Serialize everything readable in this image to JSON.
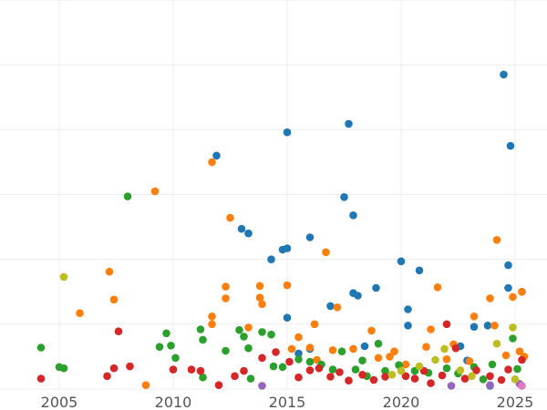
{
  "chart_data": {
    "type": "scatter",
    "title": "",
    "xlabel": "",
    "ylabel": "",
    "xlim": [
      2002.4,
      2026.4
    ],
    "ylim": [
      0,
      60
    ],
    "xticks": [
      {
        "value": 2005,
        "label": "2005"
      },
      {
        "value": 2010,
        "label": "2010"
      },
      {
        "value": 2015,
        "label": "2015"
      },
      {
        "value": 2020,
        "label": "2020"
      },
      {
        "value": 2025,
        "label": "2025"
      }
    ],
    "ygrid": [
      0,
      10,
      20,
      30,
      40,
      50,
      60
    ],
    "grid": true,
    "legend": "none",
    "series": [
      {
        "color": "#1f77b4",
        "points": [
          [
            2011.9,
            36.0
          ],
          [
            2014.8,
            21.5
          ],
          [
            2013.3,
            24.0
          ],
          [
            2013.0,
            24.7
          ],
          [
            2014.3,
            20.0
          ],
          [
            2015.0,
            39.6
          ],
          [
            2015.0,
            21.7
          ],
          [
            2015.0,
            11.0
          ],
          [
            2015.5,
            5.5
          ],
          [
            2016.0,
            23.4
          ],
          [
            2016.0,
            6.2
          ],
          [
            2016.9,
            12.8
          ],
          [
            2017.5,
            29.6
          ],
          [
            2017.7,
            40.9
          ],
          [
            2017.9,
            26.8
          ],
          [
            2017.9,
            14.8
          ],
          [
            2018.1,
            14.4
          ],
          [
            2018.4,
            6.6
          ],
          [
            2018.9,
            15.6
          ],
          [
            2020.0,
            19.7
          ],
          [
            2020.3,
            12.3
          ],
          [
            2020.3,
            9.8
          ],
          [
            2020.8,
            18.3
          ],
          [
            2022.6,
            6.6
          ],
          [
            2022.9,
            4.4
          ],
          [
            2023.2,
            9.6
          ],
          [
            2023.8,
            9.8
          ],
          [
            2024.5,
            48.5
          ],
          [
            2024.7,
            19.1
          ],
          [
            2024.7,
            15.6
          ],
          [
            2024.8,
            37.5
          ],
          [
            2025.3,
            15.0
          ],
          [
            2023.9,
            0.5
          ]
        ]
      },
      {
        "color": "#ff7f0e",
        "points": [
          [
            2008.8,
            0.6
          ],
          [
            2005.9,
            11.7
          ],
          [
            2007.2,
            18.1
          ],
          [
            2007.4,
            13.8
          ],
          [
            2009.2,
            30.5
          ],
          [
            2011.7,
            35.0
          ],
          [
            2011.7,
            10.0
          ],
          [
            2011.7,
            11.2
          ],
          [
            2012.3,
            15.8
          ],
          [
            2012.3,
            14.0
          ],
          [
            2012.5,
            26.4
          ],
          [
            2013.3,
            9.5
          ],
          [
            2013.8,
            15.9
          ],
          [
            2013.8,
            14.1
          ],
          [
            2013.9,
            13.1
          ],
          [
            2015.0,
            16.0
          ],
          [
            2015.2,
            6.2
          ],
          [
            2015.5,
            8.0
          ],
          [
            2016.0,
            6.4
          ],
          [
            2016.2,
            10.0
          ],
          [
            2016.3,
            4.5
          ],
          [
            2016.7,
            21.1
          ],
          [
            2017.0,
            6.0
          ],
          [
            2017.2,
            12.6
          ],
          [
            2017.9,
            6.2
          ],
          [
            2018.7,
            9.0
          ],
          [
            2019.0,
            4.8
          ],
          [
            2019.5,
            5.0
          ],
          [
            2019.7,
            5.8
          ],
          [
            2020.2,
            3.8
          ],
          [
            2021.1,
            6.5
          ],
          [
            2021.3,
            9.2
          ],
          [
            2021.6,
            15.7
          ],
          [
            2022.0,
            4.6
          ],
          [
            2022.3,
            6.9
          ],
          [
            2023.0,
            4.3
          ],
          [
            2023.2,
            11.2
          ],
          [
            2023.9,
            14.0
          ],
          [
            2024.1,
            9.8
          ],
          [
            2024.2,
            23.0
          ],
          [
            2024.6,
            5.2
          ],
          [
            2024.9,
            14.2
          ],
          [
            2025.2,
            5.8
          ],
          [
            2025.3,
            15.0
          ],
          [
            2025.4,
            5.0
          ]
        ]
      },
      {
        "color": "#2ca02c",
        "points": [
          [
            2004.2,
            6.4
          ],
          [
            2005.0,
            3.4
          ],
          [
            2005.2,
            3.2
          ],
          [
            2008.0,
            29.7
          ],
          [
            2009.4,
            6.5
          ],
          [
            2009.7,
            8.6
          ],
          [
            2009.9,
            6.7
          ],
          [
            2010.1,
            4.8
          ],
          [
            2011.2,
            9.2
          ],
          [
            2011.3,
            7.6
          ],
          [
            2011.3,
            1.8
          ],
          [
            2012.3,
            5.9
          ],
          [
            2012.9,
            9.1
          ],
          [
            2013.1,
            8.1
          ],
          [
            2013.3,
            6.3
          ],
          [
            2013.4,
            1.6
          ],
          [
            2013.9,
            8.8
          ],
          [
            2014.3,
            8.4
          ],
          [
            2014.4,
            3.5
          ],
          [
            2014.8,
            3.4
          ],
          [
            2015.5,
            4.6
          ],
          [
            2016.0,
            4.2
          ],
          [
            2016.5,
            3.8
          ],
          [
            2017.0,
            3.0
          ],
          [
            2017.4,
            5.8
          ],
          [
            2018.0,
            3.0
          ],
          [
            2018.3,
            4.4
          ],
          [
            2018.5,
            2.0
          ],
          [
            2019.0,
            7.0
          ],
          [
            2019.3,
            2.8
          ],
          [
            2019.9,
            3.7
          ],
          [
            2020.6,
            2.8
          ],
          [
            2021.2,
            2.5
          ],
          [
            2022.0,
            3.2
          ],
          [
            2022.5,
            2.4
          ],
          [
            2023.2,
            3.4
          ],
          [
            2023.6,
            1.5
          ],
          [
            2024.0,
            3.8
          ],
          [
            2024.9,
            7.8
          ],
          [
            2025.1,
            3.1
          ]
        ]
      },
      {
        "color": "#d62728",
        "points": [
          [
            2004.2,
            1.6
          ],
          [
            2007.1,
            2.0
          ],
          [
            2007.4,
            3.2
          ],
          [
            2007.6,
            8.9
          ],
          [
            2008.1,
            3.5
          ],
          [
            2010.0,
            3.0
          ],
          [
            2010.8,
            3.0
          ],
          [
            2011.2,
            2.8
          ],
          [
            2012.0,
            0.6
          ],
          [
            2012.7,
            2.0
          ],
          [
            2013.1,
            2.8
          ],
          [
            2013.9,
            4.8
          ],
          [
            2014.5,
            5.7
          ],
          [
            2015.1,
            4.2
          ],
          [
            2015.5,
            1.8
          ],
          [
            2016.0,
            2.9
          ],
          [
            2016.4,
            3.2
          ],
          [
            2016.9,
            1.9
          ],
          [
            2017.3,
            2.6
          ],
          [
            2017.7,
            1.3
          ],
          [
            2018.3,
            2.2
          ],
          [
            2018.8,
            1.4
          ],
          [
            2019.3,
            1.9
          ],
          [
            2020.2,
            2.0
          ],
          [
            2020.6,
            1.6
          ],
          [
            2021.0,
            2.8
          ],
          [
            2021.3,
            0.9
          ],
          [
            2021.8,
            2.1
          ],
          [
            2022.0,
            10.0
          ],
          [
            2022.4,
            6.3
          ],
          [
            2022.8,
            1.6
          ],
          [
            2023.3,
            2.9
          ],
          [
            2023.9,
            2.0
          ],
          [
            2024.4,
            1.4
          ],
          [
            2024.7,
            3.0
          ],
          [
            2025.3,
            4.5
          ]
        ]
      },
      {
        "color": "#9467bd",
        "points": [
          [
            2013.9,
            0.5
          ],
          [
            2022.2,
            0.5
          ],
          [
            2023.9,
            0.6
          ],
          [
            2025.2,
            0.8
          ]
        ]
      },
      {
        "color": "#bcbd22",
        "points": [
          [
            2005.2,
            17.3
          ],
          [
            2019.6,
            2.2
          ],
          [
            2020.0,
            2.8
          ],
          [
            2020.8,
            3.5
          ],
          [
            2021.5,
            4.5
          ],
          [
            2021.9,
            6.2
          ],
          [
            2022.6,
            2.9
          ],
          [
            2023.1,
            2.0
          ],
          [
            2024.2,
            7.0
          ],
          [
            2024.9,
            9.5
          ],
          [
            2025.0,
            1.5
          ]
        ]
      },
      {
        "color": "#e377c2",
        "points": [
          [
            2025.3,
            0.5
          ]
        ]
      }
    ]
  }
}
